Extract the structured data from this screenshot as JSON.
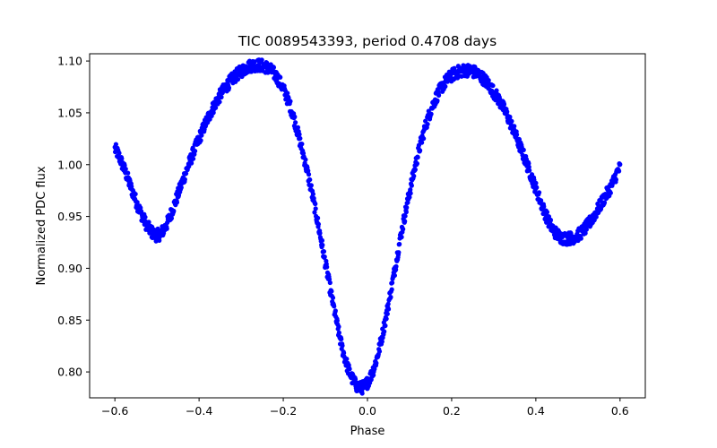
{
  "chart_data": {
    "type": "scatter",
    "title": "TIC 0089543393, period 0.4708 days",
    "xlabel": "Phase",
    "ylabel": "Normalized PDC flux",
    "xlim": [
      -0.66,
      0.66
    ],
    "ylim": [
      0.775,
      1.107
    ],
    "xticks": [
      -0.6,
      -0.4,
      -0.2,
      0.0,
      0.2,
      0.4,
      0.6
    ],
    "xtick_labels": [
      "−0.6",
      "−0.4",
      "−0.2",
      "0.0",
      "0.2",
      "0.4",
      "0.6"
    ],
    "yticks": [
      0.8,
      0.85,
      0.9,
      0.95,
      1.0,
      1.05,
      1.1
    ],
    "ytick_labels": [
      "0.80",
      "0.85",
      "0.90",
      "0.95",
      "1.00",
      "1.05",
      "1.10"
    ],
    "grid": false,
    "marker_color": "#0000ff",
    "series": [
      {
        "x": [
          -0.6,
          -0.58,
          -0.56,
          -0.54,
          -0.52,
          -0.5,
          -0.48,
          -0.46,
          -0.44,
          -0.42,
          -0.4,
          -0.38,
          -0.36,
          -0.34,
          -0.32,
          -0.3,
          -0.28,
          -0.26,
          -0.24,
          -0.22,
          -0.2,
          -0.18,
          -0.16,
          -0.14,
          -0.12,
          -0.1,
          -0.08,
          -0.06,
          -0.04,
          -0.02,
          0.0,
          0.02,
          0.04,
          0.06,
          0.08,
          0.1,
          0.12,
          0.14,
          0.16,
          0.18,
          0.2,
          0.22,
          0.24,
          0.26,
          0.28,
          0.3,
          0.32,
          0.34,
          0.36,
          0.38,
          0.4,
          0.42,
          0.44,
          0.46,
          0.48,
          0.5,
          0.52,
          0.54,
          0.56,
          0.58,
          0.6
        ],
        "y": [
          1.015,
          0.998,
          0.976,
          0.955,
          0.939,
          0.932,
          0.94,
          0.96,
          0.983,
          1.005,
          1.025,
          1.044,
          1.06,
          1.073,
          1.083,
          1.09,
          1.095,
          1.096,
          1.094,
          1.087,
          1.073,
          1.052,
          1.022,
          0.988,
          0.948,
          0.905,
          0.862,
          0.823,
          0.797,
          0.785,
          0.79,
          0.81,
          0.845,
          0.888,
          0.933,
          0.973,
          1.01,
          1.04,
          1.062,
          1.077,
          1.086,
          1.09,
          1.091,
          1.088,
          1.081,
          1.07,
          1.057,
          1.04,
          1.02,
          0.999,
          0.977,
          0.955,
          0.938,
          0.93,
          0.929,
          0.932,
          0.94,
          0.952,
          0.966,
          0.98,
          0.997
        ]
      }
    ]
  }
}
